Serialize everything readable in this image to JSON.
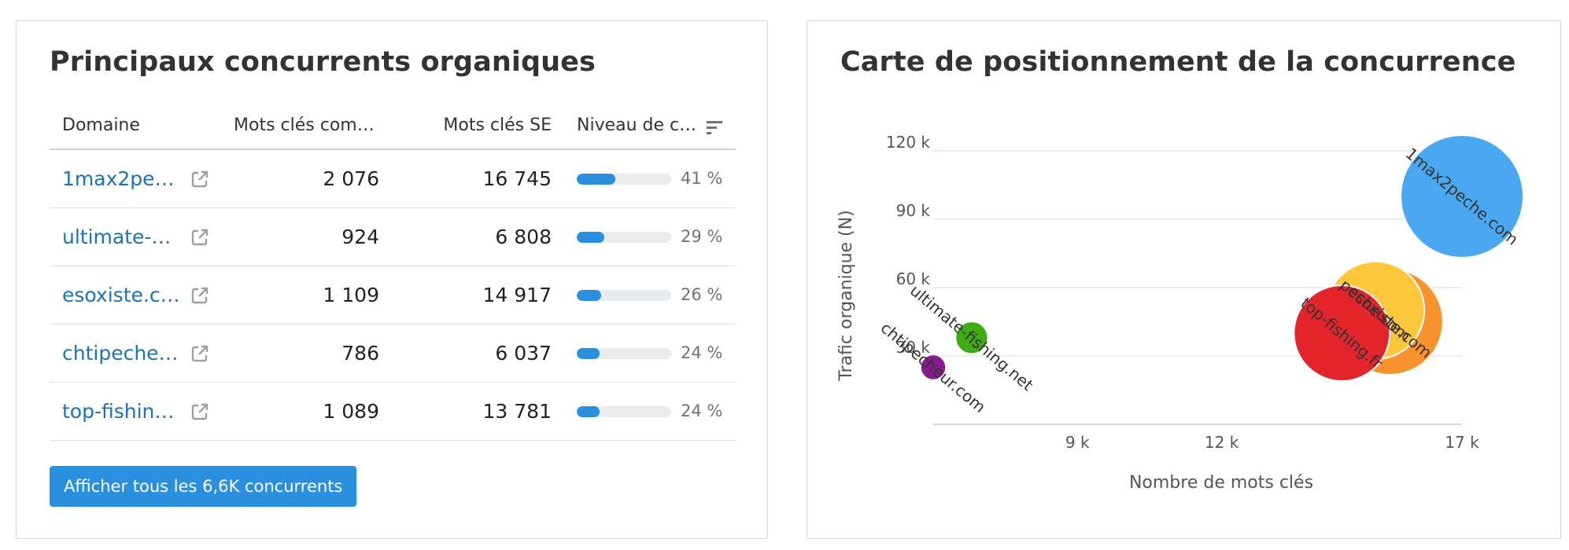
{
  "left_panel": {
    "title": "Principaux concurrents organiques",
    "columns": {
      "domain": "Domaine",
      "common": "Mots clés com…",
      "se": "Mots clés SE",
      "level": "Niveau de c…"
    },
    "rows": [
      {
        "domain": "1max2pe…",
        "common": "2 076",
        "se": "16 745",
        "level_pct": 41,
        "level": "41 %"
      },
      {
        "domain": "ultimate-…",
        "common": "924",
        "se": "6 808",
        "level_pct": 29,
        "level": "29 %"
      },
      {
        "domain": "esoxiste.c…",
        "common": "1 109",
        "se": "14 917",
        "level_pct": 26,
        "level": "26 %"
      },
      {
        "domain": "chtipeche…",
        "common": "786",
        "se": "6 037",
        "level_pct": 24,
        "level": "24 %"
      },
      {
        "domain": "top-fishin…",
        "common": "1 089",
        "se": "13 781",
        "level_pct": 24,
        "level": "24 %"
      }
    ],
    "button_label": "Afficher tous les 6,6K concurrents",
    "colors": {
      "link": "#1a73b8",
      "accent": "#2b8fe0",
      "track": "#e9ebed"
    }
  },
  "right_panel": {
    "title": "Carte de positionnement de la concurrence"
  },
  "chart_data": {
    "type": "scatter",
    "title": "Carte de positionnement de la concurrence",
    "xlabel": "Nombre de mots clés",
    "ylabel": "Trafic organique (N)",
    "x_ticks": [
      {
        "value": 9000,
        "label": "9 k"
      },
      {
        "value": 12000,
        "label": "12 k"
      },
      {
        "value": 17000,
        "label": "17 k"
      }
    ],
    "y_ticks": [
      {
        "value": 30000,
        "label": "30 k"
      },
      {
        "value": 60000,
        "label": "60 k"
      },
      {
        "value": 90000,
        "label": "90 k"
      },
      {
        "value": 120000,
        "label": "120 k"
      }
    ],
    "xlim": [
      6000,
      17000
    ],
    "ylim": [
      0,
      120000
    ],
    "grid": true,
    "points": [
      {
        "name": "1max2peche.com",
        "x": 17000,
        "y": 100000,
        "size": 16745,
        "color": "#4aa8f0"
      },
      {
        "name": "esoxiste.com",
        "x": 15500,
        "y": 45000,
        "size": 14917,
        "color": "#f7922d"
      },
      {
        "name": "peche.com",
        "x": 15200,
        "y": 50000,
        "size": 14000,
        "color": "#fdc73b"
      },
      {
        "name": "top-fishing.fr",
        "x": 14500,
        "y": 40000,
        "size": 13781,
        "color": "#e3242b"
      },
      {
        "name": "ultimate-fishing.net",
        "x": 6800,
        "y": 38000,
        "size": 6808,
        "color": "#3fac16"
      },
      {
        "name": "chtipecheur.com",
        "x": 6000,
        "y": 25000,
        "size": 6037,
        "color": "#8a1a8e"
      }
    ]
  }
}
